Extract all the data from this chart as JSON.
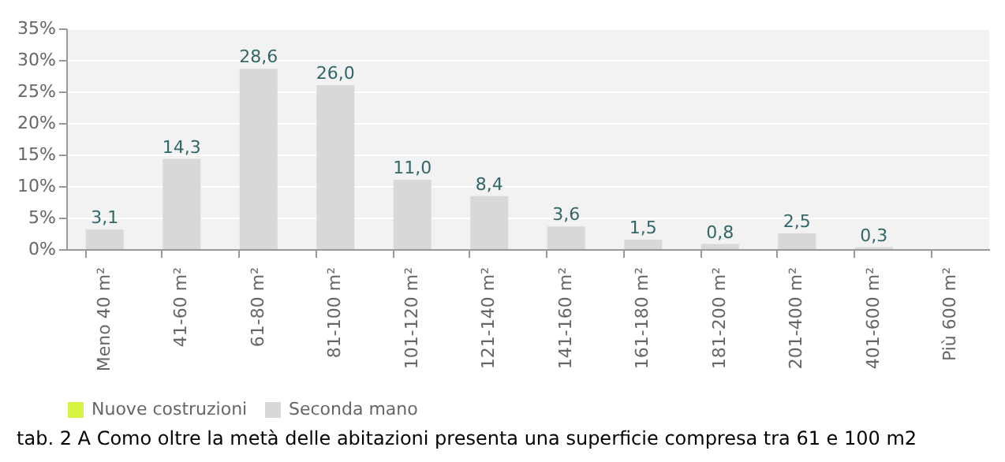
{
  "chart_data": {
    "type": "bar",
    "categories": [
      "Meno 40 m²",
      "41-60 m²",
      "61-80 m²",
      "81-100 m²",
      "101-120 m²",
      "121-140 m²",
      "141-160 m²",
      "161-180 m²",
      "181-200 m²",
      "201-400 m²",
      "401-600 m²",
      "Più 600 m²"
    ],
    "series": [
      {
        "name": "Nuove costruzioni",
        "color": "#d6f542",
        "values": [
          null,
          null,
          null,
          null,
          null,
          null,
          null,
          null,
          null,
          null,
          null,
          null
        ]
      },
      {
        "name": "Seconda mano",
        "color": "#d8d8d8",
        "values": [
          3.1,
          14.3,
          28.6,
          26.0,
          11.0,
          8.4,
          3.6,
          1.5,
          0.8,
          2.5,
          0.3,
          null
        ],
        "value_labels": [
          "3,1",
          "14,3",
          "28,6",
          "26,0",
          "11,0",
          "8,4",
          "3,6",
          "1,5",
          "0,8",
          "2,5",
          "0,3",
          null
        ]
      }
    ],
    "ylim": [
      0,
      35
    ],
    "yticks": [
      {
        "value": 0,
        "label": "0%"
      },
      {
        "value": 5,
        "label": "5%"
      },
      {
        "value": 10,
        "label": "10%"
      },
      {
        "value": 15,
        "label": "15%"
      },
      {
        "value": 20,
        "label": "20%"
      },
      {
        "value": 25,
        "label": "25%"
      },
      {
        "value": 30,
        "label": "30%"
      },
      {
        "value": 35,
        "label": "35%"
      }
    ],
    "grid": "y",
    "legend": "bottom",
    "annotations": [
      "tab. 2 A Como oltre la metà delle abitazioni presenta una superficie compresa tra 61 e 100 m2"
    ]
  }
}
